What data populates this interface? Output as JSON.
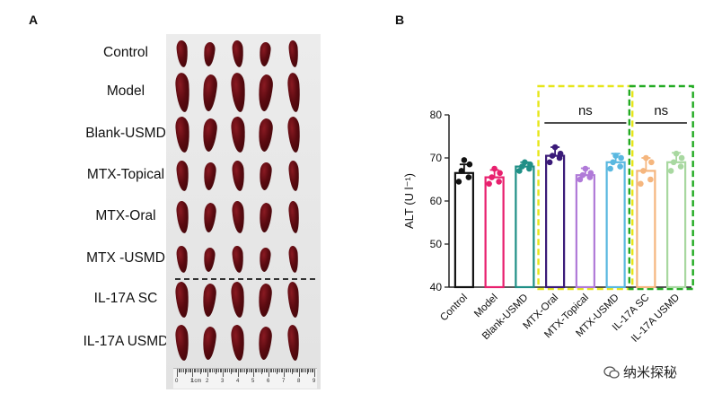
{
  "panel_a": {
    "letter": "A",
    "groups": [
      "Control",
      "Model",
      "Blank-USMD",
      "MTX-Topical",
      "MTX-Oral",
      "MTX -USMD",
      "IL-17A SC",
      "IL-17A USMD"
    ],
    "ruler": {
      "unit_label": "1cm",
      "numbers": [
        "0",
        "1",
        "2",
        "3",
        "4",
        "5",
        "6",
        "7",
        "8",
        "9"
      ]
    }
  },
  "panel_b": {
    "letter": "B"
  },
  "watermark": {
    "text": "纳米探秘"
  },
  "chart_data": {
    "type": "bar",
    "ylabel": "ALT (U l⁻¹)",
    "ylim": [
      40,
      80
    ],
    "yticks": [
      40,
      50,
      60,
      70,
      80
    ],
    "categories": [
      "Control",
      "Model",
      "Blank-USMD",
      "MTX-Oral",
      "MTX-Topical",
      "MTX-USMD",
      "IL-17A SC",
      "IL-17A USMD"
    ],
    "colors": [
      "#111111",
      "#e8206e",
      "#1f8f86",
      "#3a1a78",
      "#b07ad8",
      "#5ab8e0",
      "#f5b67e",
      "#a8d8a0"
    ],
    "values": [
      66.5,
      65.5,
      68.0,
      70.5,
      66.0,
      69.0,
      67.0,
      69.0
    ],
    "errors": [
      2.0,
      1.7,
      1.0,
      2.0,
      1.6,
      2.0,
      3.0,
      2.2
    ],
    "points": [
      [
        64.5,
        65.5,
        67.0,
        68.5,
        69.5
      ],
      [
        64.0,
        64.5,
        65.5,
        66.5,
        67.5
      ],
      [
        67.0,
        67.5,
        68.0,
        68.5,
        69.0
      ],
      [
        69.0,
        70.0,
        70.5,
        71.0,
        72.5
      ],
      [
        65.0,
        65.5,
        66.0,
        66.5,
        67.5
      ],
      [
        67.5,
        68.0,
        69.0,
        70.0,
        70.5
      ],
      [
        64.0,
        65.0,
        67.0,
        69.0,
        70.0
      ],
      [
        67.0,
        68.0,
        69.0,
        70.0,
        71.0
      ]
    ],
    "comparisons": [
      {
        "label": "ns",
        "from": 3,
        "to": 5,
        "box_color": "#e6e61a"
      },
      {
        "label": "ns",
        "from": 6,
        "to": 7,
        "box_color": "#22aa22"
      }
    ]
  }
}
